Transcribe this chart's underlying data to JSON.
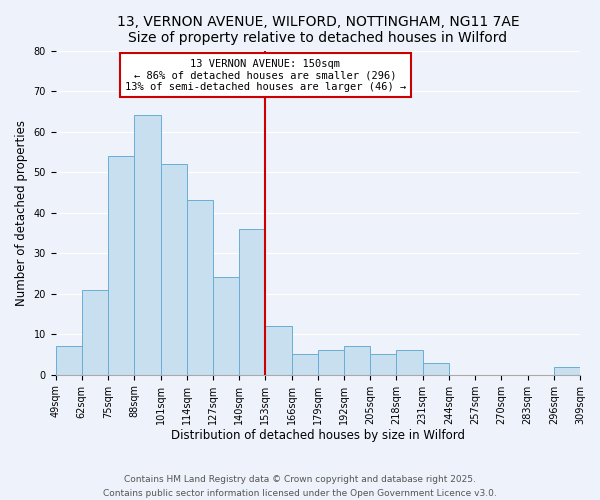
{
  "title": "13, VERNON AVENUE, WILFORD, NOTTINGHAM, NG11 7AE",
  "subtitle": "Size of property relative to detached houses in Wilford",
  "xlabel": "Distribution of detached houses by size in Wilford",
  "ylabel": "Number of detached properties",
  "bar_color": "#c8dff0",
  "bar_edge_color": "#6aadd5",
  "background_color": "#eef2fa",
  "grid_color": "#ffffff",
  "bins": [
    49,
    62,
    75,
    88,
    101,
    114,
    127,
    140,
    153,
    166,
    179,
    192,
    205,
    218,
    231,
    244,
    257,
    270,
    283,
    296,
    309
  ],
  "values": [
    7,
    21,
    54,
    64,
    52,
    43,
    24,
    36,
    12,
    5,
    6,
    7,
    5,
    6,
    3,
    0,
    0,
    0,
    0,
    2
  ],
  "vline_x": 153,
  "vline_color": "#cc0000",
  "annotation_text": "13 VERNON AVENUE: 150sqm\n← 86% of detached houses are smaller (296)\n13% of semi-detached houses are larger (46) →",
  "annotation_box_color": "#ffffff",
  "annotation_box_edge_color": "#cc0000",
  "ylim": [
    0,
    80
  ],
  "yticks": [
    0,
    10,
    20,
    30,
    40,
    50,
    60,
    70,
    80
  ],
  "footer_text": "Contains HM Land Registry data © Crown copyright and database right 2025.\nContains public sector information licensed under the Open Government Licence v3.0.",
  "tick_labels": [
    "49sqm",
    "62sqm",
    "75sqm",
    "88sqm",
    "101sqm",
    "114sqm",
    "127sqm",
    "140sqm",
    "153sqm",
    "166sqm",
    "179sqm",
    "192sqm",
    "205sqm",
    "218sqm",
    "231sqm",
    "244sqm",
    "257sqm",
    "270sqm",
    "283sqm",
    "296sqm",
    "309sqm"
  ],
  "title_fontsize": 10,
  "axis_label_fontsize": 8.5,
  "tick_fontsize": 7,
  "annotation_fontsize": 7.5,
  "footer_fontsize": 6.5
}
